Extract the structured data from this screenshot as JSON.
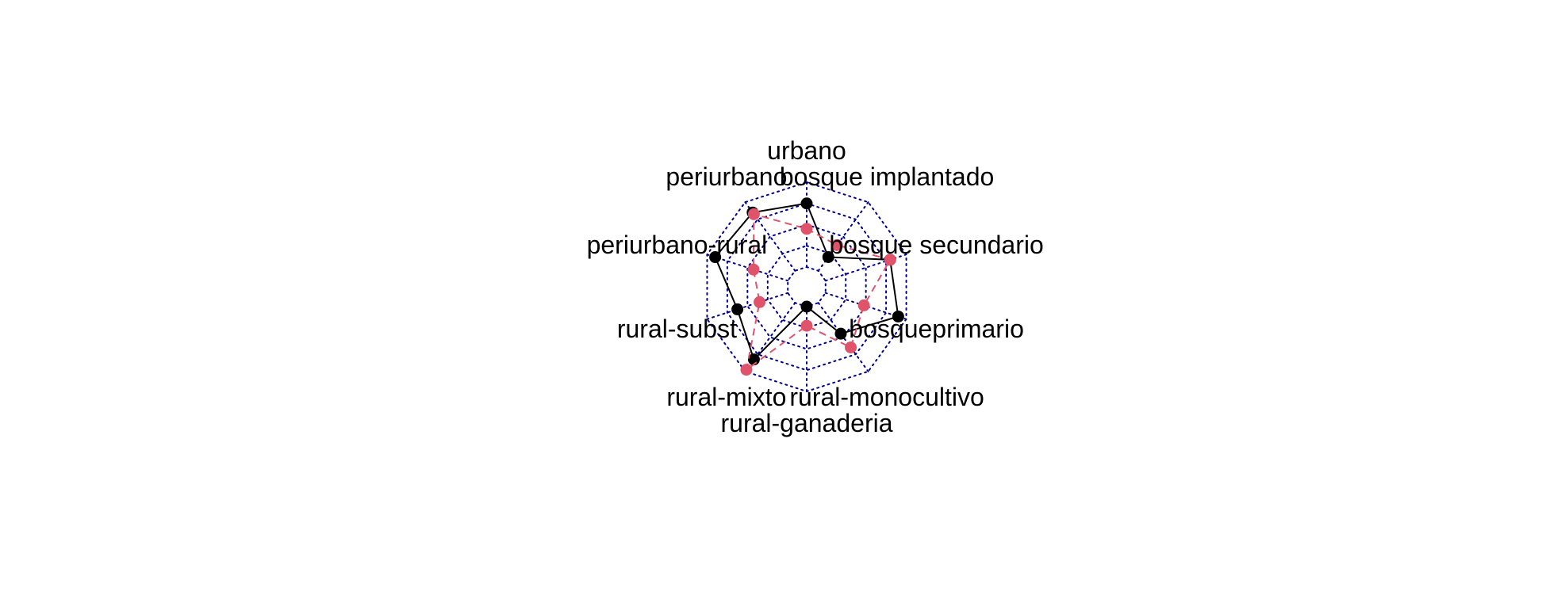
{
  "chart_data": {
    "type": "radar",
    "axes": [
      "urbano",
      "bosque implantado",
      "bosque secundario",
      "bosqueprimario",
      "rural-monocultivo",
      "rural-ganaderia",
      "rural-mixto",
      "rural-subst",
      "periurbano-rural",
      "periurbano"
    ],
    "rmax": 4,
    "grid_levels": [
      0,
      1,
      2,
      3,
      4
    ],
    "grid": true,
    "series": [
      {
        "values": [
          3.0,
          0.8,
          3.2,
          3.6,
          1.8,
          0.0,
          3.3,
          2.5,
          3.6,
          3.4
        ],
        "color": "#000000",
        "line_style": "solid"
      },
      {
        "values": [
          1.8,
          1.5,
          3.2,
          1.9,
          2.6,
          0.9,
          3.9,
          1.4,
          1.7,
          3.3
        ],
        "color": "#DF536B",
        "line_style": "dashed"
      }
    ],
    "grid_color": "#00008B",
    "title": "",
    "legend": false
  }
}
